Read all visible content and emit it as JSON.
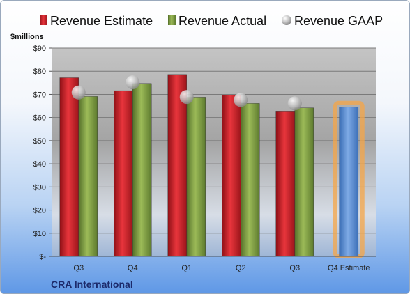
{
  "company": "CRA International",
  "chart_data": {
    "type": "bar",
    "ylabel": "$millions",
    "ylim": [
      0,
      90
    ],
    "yticks": [
      0,
      10,
      20,
      30,
      40,
      50,
      60,
      70,
      80,
      90
    ],
    "ytick_labels": [
      "$-",
      "$10",
      "$20",
      "$30",
      "$40",
      "$50",
      "$60",
      "$70",
      "$80",
      "$90"
    ],
    "categories": [
      "Q3",
      "Q4",
      "Q1",
      "Q2",
      "Q3",
      "Q4 Estimate"
    ],
    "legend_position": "top",
    "grid": true,
    "series": [
      {
        "name": "Revenue Estimate",
        "color": "#d0232b",
        "values": [
          77.2,
          71.6,
          78.6,
          69.6,
          62.5,
          null
        ]
      },
      {
        "name": "Revenue Actual",
        "color": "#7e9e3e",
        "values": [
          69.1,
          74.7,
          68.8,
          66.1,
          64.2,
          null
        ]
      },
      {
        "name": "Revenue GAAP",
        "color": "#b8b8b8",
        "values": [
          70.8,
          75.2,
          68.9,
          67.6,
          66.1,
          null
        ]
      }
    ],
    "estimate_bar": {
      "category": "Q4 Estimate",
      "value": 64.5,
      "color": "#5b8fd6",
      "highlight": "#f6a547"
    }
  }
}
